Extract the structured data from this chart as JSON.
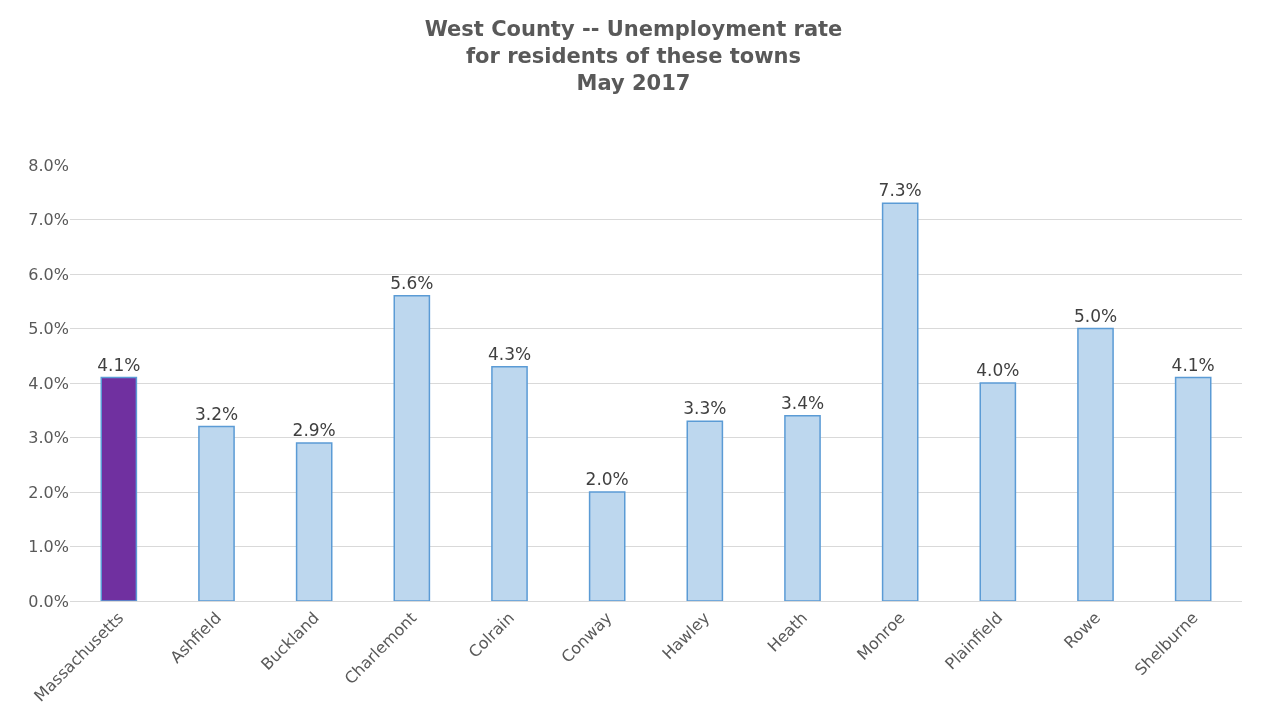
{
  "chart_data": {
    "type": "bar",
    "title": "West County -- Unemployment rate\nfor residents of these towns\nMay 2017",
    "categories": [
      "Massachusetts",
      "Ashfield",
      "Buckland",
      "Charlemont",
      "Colrain",
      "Conway",
      "Hawley",
      "Heath",
      "Monroe",
      "Plainfield",
      "Rowe",
      "Shelburne"
    ],
    "values": [
      4.1,
      3.2,
      2.9,
      5.6,
      4.3,
      2.0,
      3.3,
      3.4,
      7.3,
      4.0,
      5.0,
      4.1
    ],
    "value_labels": [
      "4.1%",
      "3.2%",
      "2.9%",
      "5.6%",
      "4.3%",
      "2.0%",
      "3.3%",
      "3.4%",
      "7.3%",
      "4.0%",
      "5.0%",
      "4.1%"
    ],
    "colors": [
      "#7030a0",
      "#bdd7ee",
      "#bdd7ee",
      "#bdd7ee",
      "#bdd7ee",
      "#bdd7ee",
      "#bdd7ee",
      "#bdd7ee",
      "#bdd7ee",
      "#bdd7ee",
      "#bdd7ee",
      "#bdd7ee"
    ],
    "ylim": [
      0,
      8
    ],
    "yticks": [
      {
        "value": 0,
        "label": "0.0%"
      },
      {
        "value": 1,
        "label": "1.0%"
      },
      {
        "value": 2,
        "label": "2.0%"
      },
      {
        "value": 3,
        "label": "3.0%"
      },
      {
        "value": 4,
        "label": "4.0%"
      },
      {
        "value": 5,
        "label": "5.0%"
      },
      {
        "value": 6,
        "label": "6.0%"
      },
      {
        "value": 7,
        "label": "7.0%"
      },
      {
        "value": 8,
        "label": "8.0%"
      }
    ],
    "grid": "y"
  }
}
